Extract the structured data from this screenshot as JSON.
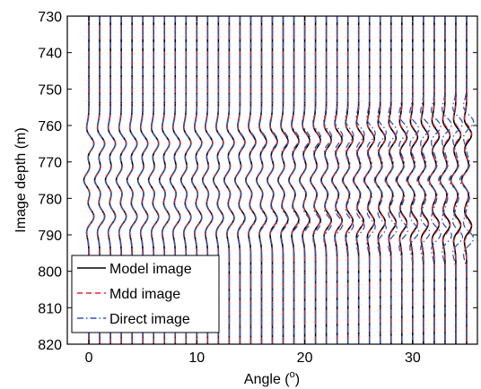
{
  "chart_data": {
    "type": "line",
    "title": "",
    "xlabel": "Angle (",
    "xlabel_superscript": "o",
    "xlabel_suffix": ")",
    "ylabel": "Image depth (m)",
    "xlim": [
      -2,
      36
    ],
    "ylim": [
      730,
      820
    ],
    "y_reversed": true,
    "grid": false,
    "xticks": [
      0,
      10,
      20,
      30
    ],
    "yticks": [
      730,
      740,
      750,
      760,
      770,
      780,
      790,
      800,
      810,
      820
    ],
    "trace_angles": [
      0,
      1,
      2,
      3,
      4,
      5,
      6,
      7,
      8,
      9,
      10,
      11,
      12,
      13,
      14,
      15,
      16,
      17,
      18,
      19,
      20,
      21,
      22,
      23,
      24,
      25,
      26,
      27,
      28,
      29,
      30,
      31,
      32,
      33,
      34,
      35
    ],
    "event_depths_at_zero_angle": [
      765,
      775,
      785
    ],
    "event_polarities": [
      1,
      -1,
      1
    ],
    "legend_position": "bottom-left",
    "series": [
      {
        "name": "Model image",
        "color": "#000000",
        "dash": "solid"
      },
      {
        "name": "Mdd image",
        "color": "#e8202a",
        "dash": "dashed"
      },
      {
        "name": "Direct image",
        "color": "#2b54c6",
        "dash": "dashdot"
      }
    ]
  }
}
